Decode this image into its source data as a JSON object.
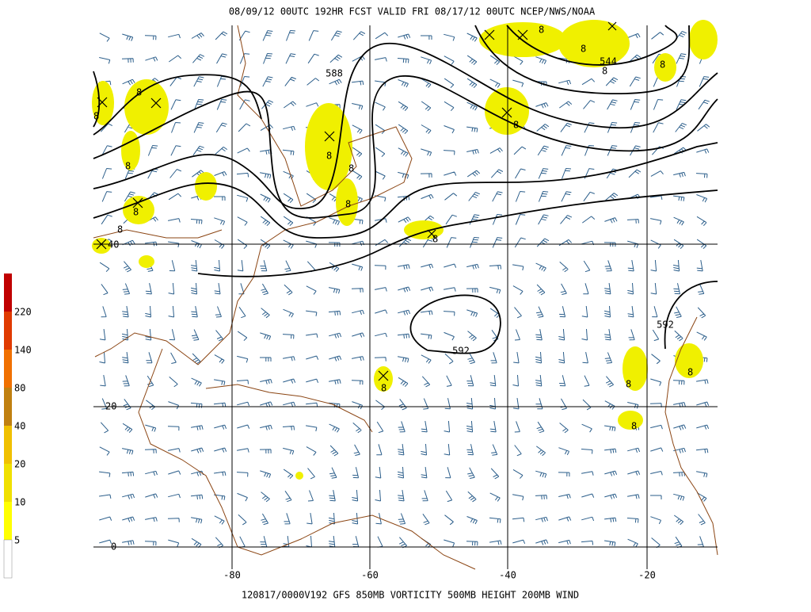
{
  "header": {
    "title": "08/09/12 00UTC  192HR  FCST VALID FRI 08/17/12 00UTC  NCEP/NWS/NOAA"
  },
  "footer": {
    "caption": "120817/0000V192 GFS  850MB VORTICITY 500MB HEIGHT 200MB WIND"
  },
  "map": {
    "latitude_labels": [
      "40",
      "20",
      "0"
    ],
    "longitude_labels": [
      "-80",
      "-60",
      "-40",
      "-20"
    ],
    "contour_labels": [
      "588",
      "544",
      "592",
      "592"
    ],
    "vorticity_labels": [
      "8",
      "8",
      "8",
      "8",
      "8",
      "8",
      "8",
      "8",
      "8",
      "8",
      "8",
      "8",
      "8",
      "8",
      "8",
      "8",
      "8",
      "8"
    ]
  },
  "colorbar": {
    "labels": [
      "220",
      "140",
      "80",
      "40",
      "20",
      "10",
      "5"
    ]
  }
}
